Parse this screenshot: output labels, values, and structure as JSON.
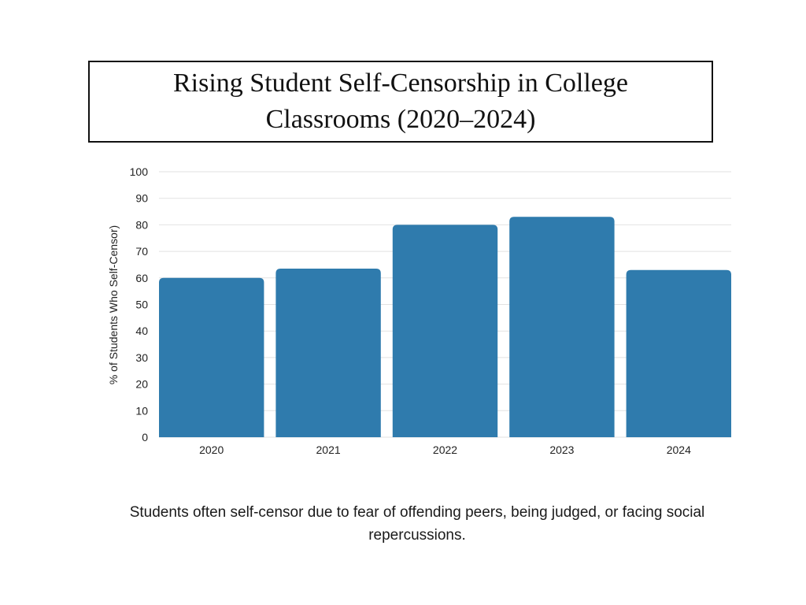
{
  "chart_data": {
    "type": "bar",
    "title": "Rising Student Self-Censorship in College Classrooms (2020–2024)",
    "categories": [
      "2020",
      "2021",
      "2022",
      "2023",
      "2024"
    ],
    "values": [
      60,
      63.5,
      80,
      83,
      63
    ],
    "xlabel": "",
    "ylabel": "% of Students Who Self-Censor)",
    "ylim": [
      0,
      100
    ],
    "yticks": [
      "0",
      "10",
      "20",
      "30",
      "40",
      "50",
      "60",
      "70",
      "80",
      "90",
      "100"
    ],
    "grid": true,
    "legend": "none",
    "colors": {
      "bar": "#2f7bad",
      "grid": "#e2e2e2"
    }
  },
  "caption": "Students often self-censor due to fear of offending peers, being judged, or facing social repercussions."
}
